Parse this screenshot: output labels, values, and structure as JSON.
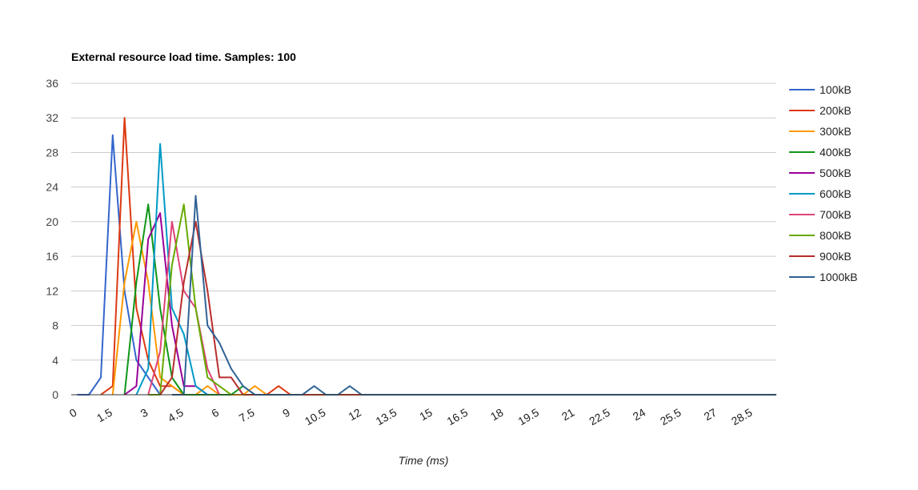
{
  "chart_data": {
    "type": "line",
    "title": "External resource load time. Samples: 100",
    "xlabel": "Time (ms)",
    "ylabel": "",
    "ylim": [
      0,
      36
    ],
    "xlim": [
      0,
      29.75
    ],
    "yticks": [
      0,
      4,
      8,
      12,
      16,
      20,
      24,
      28,
      32,
      36
    ],
    "xticks": [
      "0",
      "1.5",
      "3",
      "4.5",
      "6",
      "7.5",
      "9",
      "10.5",
      "12",
      "13.5",
      "15",
      "16.5",
      "18",
      "19.5",
      "21",
      "22.5",
      "24",
      "25.5",
      "27",
      "28.5"
    ],
    "xtick_values": [
      0,
      1.5,
      3,
      4.5,
      6,
      7.5,
      9,
      10.5,
      12,
      13.5,
      15,
      16.5,
      18,
      19.5,
      21,
      22.5,
      24,
      25.5,
      27,
      28.5
    ],
    "grid": true,
    "legend_position": "right",
    "series": [
      {
        "name": "100kB",
        "color": "#3366cc",
        "x": [
          0.25,
          0.75,
          1.25,
          1.75,
          2.25,
          2.75,
          3.25,
          3.75
        ],
        "y": [
          0,
          0,
          2,
          30,
          12,
          4,
          2,
          0
        ]
      },
      {
        "name": "200kB",
        "color": "#dc3912",
        "x": [
          1.25,
          1.75,
          2.25,
          2.75,
          3.25,
          3.75,
          4.25,
          4.75,
          5.25,
          8.25,
          8.75,
          9.25,
          11.25,
          11.75,
          12.25
        ],
        "y": [
          0,
          1,
          32,
          10,
          4,
          1,
          1,
          0,
          0,
          0,
          1,
          0,
          0,
          0,
          0
        ]
      },
      {
        "name": "300kB",
        "color": "#ff9900",
        "x": [
          1.75,
          2.25,
          2.75,
          3.25,
          3.75,
          4.25,
          4.75,
          5.25,
          5.75,
          6.25,
          7.25,
          7.75,
          8.25
        ],
        "y": [
          0,
          13,
          20,
          13,
          2,
          1,
          0,
          0,
          1,
          0,
          0,
          1,
          0
        ]
      },
      {
        "name": "400kB",
        "color": "#109618",
        "x": [
          2.25,
          2.75,
          3.25,
          3.75,
          4.25,
          4.75,
          5.25,
          6.75,
          7.25,
          7.75
        ],
        "y": [
          0,
          13,
          22,
          10,
          2,
          0,
          0,
          0,
          1,
          0
        ]
      },
      {
        "name": "500kB",
        "color": "#990099",
        "x": [
          2.25,
          2.75,
          3.25,
          3.75,
          4.25,
          4.75,
          5.25,
          5.75
        ],
        "y": [
          0,
          1,
          18,
          21,
          8,
          1,
          1,
          0
        ]
      },
      {
        "name": "600kB",
        "color": "#0099c6",
        "x": [
          2.75,
          3.25,
          3.75,
          4.25,
          4.75,
          5.25,
          5.75
        ],
        "y": [
          0,
          3,
          29,
          10,
          7,
          1,
          0
        ]
      },
      {
        "name": "700kB",
        "color": "#dd4477",
        "x": [
          3.25,
          3.75,
          4.25,
          4.75,
          5.25,
          5.75,
          6.25
        ],
        "y": [
          0,
          5,
          20,
          12,
          10,
          3,
          0
        ]
      },
      {
        "name": "800kB",
        "color": "#66aa00",
        "x": [
          3.25,
          3.75,
          4.25,
          4.75,
          5.25,
          5.75,
          6.25,
          6.75
        ],
        "y": [
          0,
          0,
          15,
          22,
          10,
          2,
          1,
          0
        ]
      },
      {
        "name": "900kB",
        "color": "#b82e2e",
        "x": [
          3.75,
          4.25,
          4.75,
          5.25,
          5.75,
          6.25,
          6.75,
          7.25
        ],
        "y": [
          0,
          2,
          13,
          20,
          12,
          2,
          2,
          0
        ]
      },
      {
        "name": "1000kB",
        "color": "#316395",
        "x": [
          4.25,
          4.75,
          5.25,
          5.75,
          6.25,
          6.75,
          7.25,
          7.75,
          9.75,
          10.25,
          10.75,
          11.25,
          11.75,
          12.25,
          29.75
        ],
        "y": [
          0,
          0,
          23,
          8,
          6,
          3,
          1,
          0,
          0,
          1,
          0,
          0,
          1,
          0,
          0
        ]
      }
    ]
  }
}
